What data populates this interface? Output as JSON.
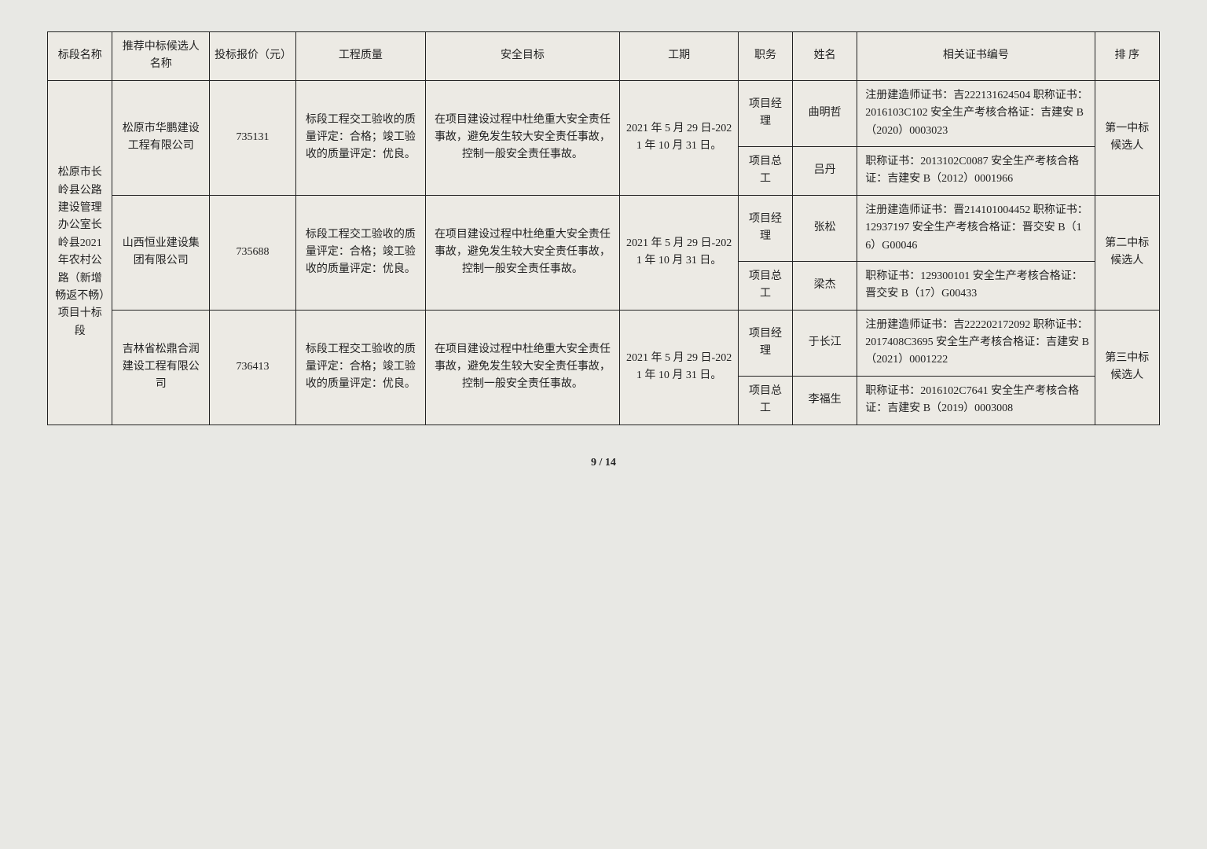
{
  "headers": {
    "section": "标段名称",
    "candidate": "推荐中标候选人名称",
    "bid": "投标报价（元）",
    "quality": "工程质量",
    "safety": "安全目标",
    "period": "工期",
    "role": "职务",
    "name": "姓名",
    "cert": "相关证书编号",
    "rank": "排 序"
  },
  "section_name": "松原市长岭县公路建设管理办公室长岭县2021年农村公路（新增畅返不畅）项目十标段",
  "quality_text": "标段工程交工验收的质量评定：合格；竣工验收的质量评定：优良。",
  "safety_text": "在项目建设过程中杜绝重大安全责任事故，避免发生较大安全责任事故，控制一般安全责任事故。",
  "period_text": "2021 年 5 月 29 日-2021 年 10 月 31 日。",
  "candidates": [
    {
      "company": "松原市华鹏建设工程有限公司",
      "bid": "735131",
      "rank": "第一中标候选人",
      "people": [
        {
          "role": "项目经理",
          "name": "曲明哲",
          "cert": "注册建造师证书：吉222131624504\n职称证书：2016103C102\n安全生产考核合格证：吉建安 B（2020）0003023"
        },
        {
          "role": "项目总工",
          "name": "吕丹",
          "cert": "职称证书：2013102C0087\n安全生产考核合格证：吉建安 B（2012）0001966"
        }
      ]
    },
    {
      "company": "山西恒业建设集团有限公司",
      "bid": "735688",
      "rank": "第二中标候选人",
      "people": [
        {
          "role": "项目经理",
          "name": "张松",
          "cert": "注册建造师证书：晋214101004452\n职称证书：12937197\n安全生产考核合格证：晋交安 B（16）G00046"
        },
        {
          "role": "项目总工",
          "name": "梁杰",
          "cert": "职称证书：129300101\n安全生产考核合格证：晋交安 B（17）G00433"
        }
      ]
    },
    {
      "company": "吉林省松鼎合润建设工程有限公司",
      "bid": "736413",
      "rank": "第三中标候选人",
      "people": [
        {
          "role": "项目经理",
          "name": "于长江",
          "cert": "注册建造师证书：吉222202172092\n职称证书：2017408C3695\n安全生产考核合格证：吉建安 B（2021）0001222"
        },
        {
          "role": "项目总工",
          "name": "李福生",
          "cert": "职称证书：2016102C7641\n安全生产考核合格证：吉建安 B（2019）0003008"
        }
      ]
    }
  ],
  "page": "9 / 14"
}
